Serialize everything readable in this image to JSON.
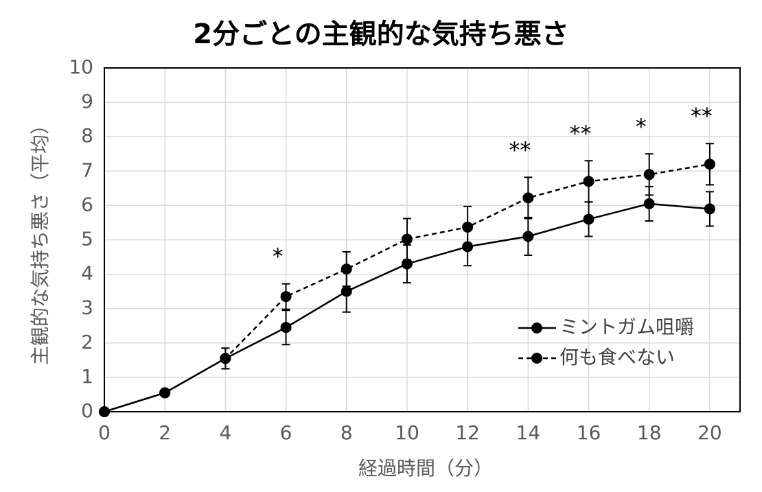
{
  "chart_data": {
    "type": "line",
    "title": "2分ごとの主観的な気持ち悪さ",
    "x_label": "経過時間（分）",
    "y_label": "主観的な気持ち悪さ（平均）",
    "x": [
      0,
      2,
      4,
      6,
      8,
      10,
      12,
      14,
      16,
      18,
      20
    ],
    "series": [
      {
        "name": "ミントガム咀嚼",
        "color": "#000000",
        "dash": false,
        "values": [
          0,
          0.55,
          1.55,
          2.45,
          3.5,
          4.3,
          4.8,
          5.1,
          5.6,
          6.05,
          5.9
        ],
        "error": [
          null,
          null,
          0.3,
          0.5,
          0.6,
          0.55,
          0.55,
          0.55,
          0.5,
          0.5,
          0.5
        ]
      },
      {
        "name": "何も食べない",
        "color": "#000000",
        "dash": true,
        "values": [
          0,
          0.55,
          1.55,
          3.35,
          4.15,
          5.02,
          5.37,
          6.22,
          6.7,
          6.9,
          7.2
        ],
        "error": [
          null,
          null,
          0.3,
          0.37,
          0.5,
          0.6,
          0.6,
          0.6,
          0.6,
          0.6,
          0.6
        ]
      }
    ],
    "annotations": [
      {
        "x": 6,
        "text": "*"
      },
      {
        "x": 14,
        "text": "**"
      },
      {
        "x": 16,
        "text": "**"
      },
      {
        "x": 18,
        "text": "*"
      },
      {
        "x": 20,
        "text": "**"
      }
    ],
    "xlim": [
      0,
      21
    ],
    "xticks": [
      0,
      2,
      4,
      6,
      8,
      10,
      12,
      14,
      16,
      18,
      20
    ],
    "ylim": [
      0,
      10
    ],
    "yticks": [
      0,
      1,
      2,
      3,
      4,
      5,
      6,
      7,
      8,
      9,
      10
    ],
    "grid": true,
    "legend": "lower right"
  }
}
